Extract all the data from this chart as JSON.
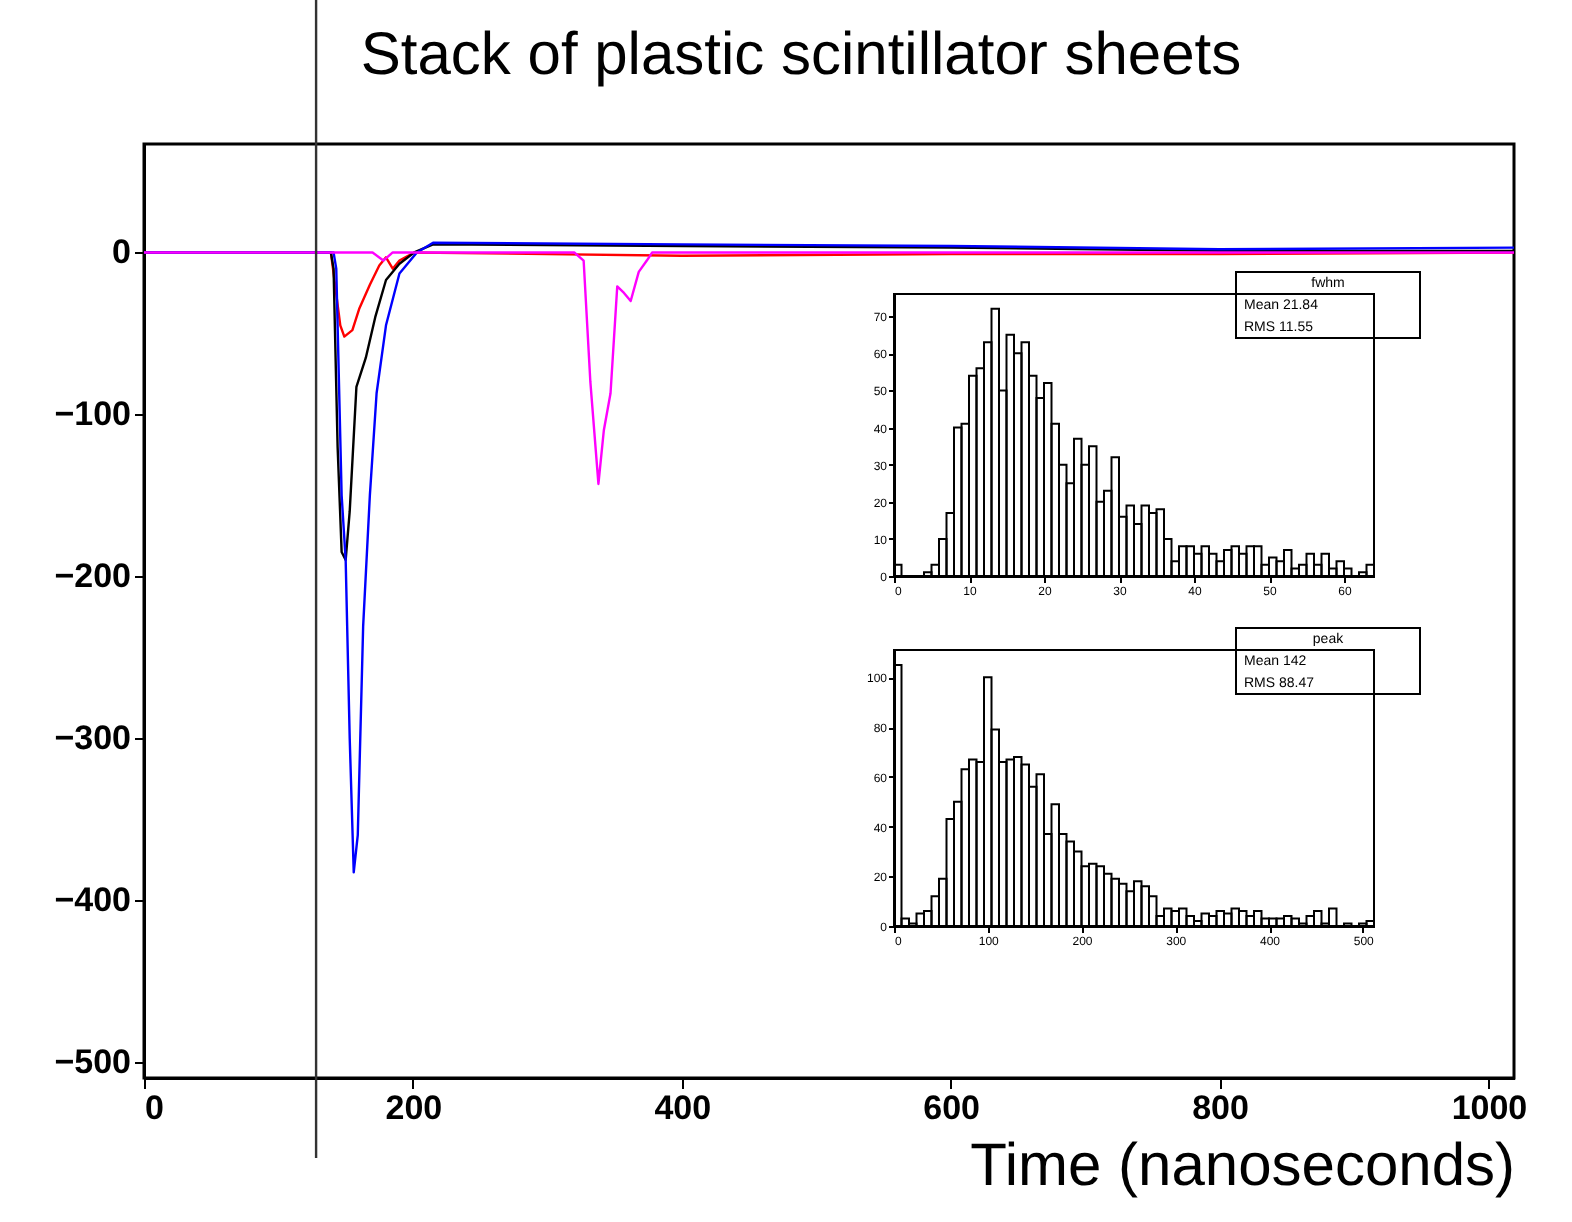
{
  "chart_data": [
    {
      "type": "line",
      "title": "Stack of plastic scintillator sheets",
      "xlabel": "Time (nanoseconds)",
      "xlim": [
        0,
        1019
      ],
      "ylim": [
        -510,
        67
      ],
      "xticks": [
        0,
        200,
        400,
        600,
        800,
        {
          "value": 1000,
          "label": "1000"
        }
      ],
      "yticks": [
        -500,
        -400,
        -300,
        -200,
        -100,
        0
      ],
      "grid": false,
      "legend": false,
      "ref_lines": [
        {
          "axis": "x",
          "value": 128,
          "color": "#333333"
        }
      ],
      "series": [
        {
          "color": "#ff0000",
          "x": [
            139,
            146,
            149,
            155,
            160,
            168,
            175,
            180,
            185,
            190,
            201,
            400,
            600,
            800,
            1019
          ],
          "values": [
            0,
            -45,
            -52,
            -48,
            -35,
            -20,
            -8,
            -3,
            -10,
            -5,
            0,
            -2,
            -1,
            -1,
            0
          ]
        },
        {
          "color": "#000000",
          "x": [
            0,
            139,
            141,
            144,
            147,
            150,
            153,
            158,
            165,
            172,
            180,
            190,
            201,
            215,
            400,
            600,
            800,
            1019
          ],
          "values": [
            0,
            0,
            -10,
            -120,
            -185,
            -190,
            -160,
            -83,
            -65,
            -40,
            -17,
            -7,
            0,
            5,
            4,
            3,
            1,
            1
          ]
        },
        {
          "color": "#0000ff",
          "x": [
            0,
            141,
            143,
            147,
            150,
            153,
            156,
            159,
            163,
            168,
            173,
            180,
            190,
            203,
            215,
            400,
            600,
            800,
            1019
          ],
          "values": [
            0,
            0,
            -10,
            -150,
            -190,
            -300,
            -383,
            -360,
            -231,
            -150,
            -87,
            -45,
            -13,
            0,
            6,
            5,
            4,
            2,
            3
          ]
        },
        {
          "color": "#ff00ff",
          "x": [
            0,
            170,
            178,
            185,
            320,
            327,
            332,
            338,
            342,
            347,
            352,
            357,
            362,
            368,
            374,
            378,
            1019
          ],
          "values": [
            0,
            0,
            -5,
            0,
            0,
            -5,
            -80,
            -143,
            -110,
            -87,
            -21,
            -25,
            -30,
            -12,
            -5,
            0,
            0
          ]
        }
      ]
    },
    {
      "type": "histogram",
      "title": "fwhm",
      "annotations": [
        "Mean 21.84",
        "RMS 11.55"
      ],
      "xlim": [
        0,
        64
      ],
      "ylim": [
        0,
        76
      ],
      "xticks": [
        0,
        10,
        20,
        30,
        40,
        50,
        60
      ],
      "yticks": [
        0,
        10,
        20,
        30,
        40,
        50,
        60,
        70
      ],
      "bins": [
        0,
        1,
        2,
        3,
        4,
        5,
        6,
        7,
        8,
        9,
        10,
        11,
        12,
        13,
        14,
        15,
        16,
        17,
        18,
        19,
        20,
        21,
        22,
        23,
        24,
        25,
        26,
        27,
        28,
        29,
        30,
        31,
        32,
        33,
        34,
        35,
        36,
        37,
        38,
        39,
        40,
        41,
        42,
        43,
        44,
        45,
        46,
        47,
        48,
        49,
        50,
        51,
        52,
        53,
        54,
        55,
        56,
        57,
        58,
        59,
        60,
        61,
        62,
        63,
        64
      ],
      "values": [
        3,
        0,
        0,
        0,
        1,
        3,
        10,
        17,
        40,
        41,
        54,
        56,
        63,
        72,
        50,
        65,
        60,
        63,
        54,
        48,
        52,
        41,
        30,
        25,
        37,
        30,
        35,
        20,
        23,
        32,
        16,
        19,
        14,
        19,
        17,
        18,
        10,
        4,
        8,
        8,
        6,
        8,
        6,
        4,
        7,
        8,
        6,
        8,
        8,
        3,
        5,
        4,
        7,
        2,
        3,
        6,
        3,
        6,
        2,
        4,
        2,
        0,
        1,
        3
      ]
    },
    {
      "type": "histogram",
      "title": "peak",
      "annotations": [
        "Mean 142",
        "RMS 88.47"
      ],
      "xlim": [
        0,
        512
      ],
      "ylim": [
        0,
        111
      ],
      "xticks": [
        0,
        100,
        200,
        300,
        400,
        500
      ],
      "yticks": [
        0,
        20,
        40,
        60,
        80,
        100
      ],
      "bins": [
        0,
        8,
        16,
        24,
        32,
        40,
        48,
        56,
        64,
        72,
        80,
        88,
        96,
        104,
        112,
        120,
        128,
        136,
        144,
        152,
        160,
        168,
        176,
        184,
        192,
        200,
        208,
        216,
        224,
        232,
        240,
        248,
        256,
        264,
        272,
        280,
        288,
        296,
        304,
        312,
        320,
        328,
        336,
        344,
        352,
        360,
        368,
        376,
        384,
        392,
        400,
        408,
        416,
        424,
        432,
        440,
        448,
        456,
        464,
        472,
        480,
        488,
        496,
        504,
        512
      ],
      "values": [
        105,
        3,
        1,
        5,
        6,
        12,
        19,
        43,
        50,
        63,
        67,
        66,
        100,
        79,
        66,
        67,
        68,
        65,
        56,
        61,
        37,
        49,
        37,
        34,
        30,
        24,
        25,
        24,
        21,
        19,
        17,
        14,
        18,
        16,
        12,
        4,
        7,
        6,
        7,
        4,
        2,
        5,
        4,
        6,
        5,
        7,
        6,
        4,
        6,
        3,
        3,
        3,
        4,
        3,
        1,
        4,
        6,
        1,
        7,
        0,
        1,
        0,
        1,
        2
      ]
    }
  ]
}
